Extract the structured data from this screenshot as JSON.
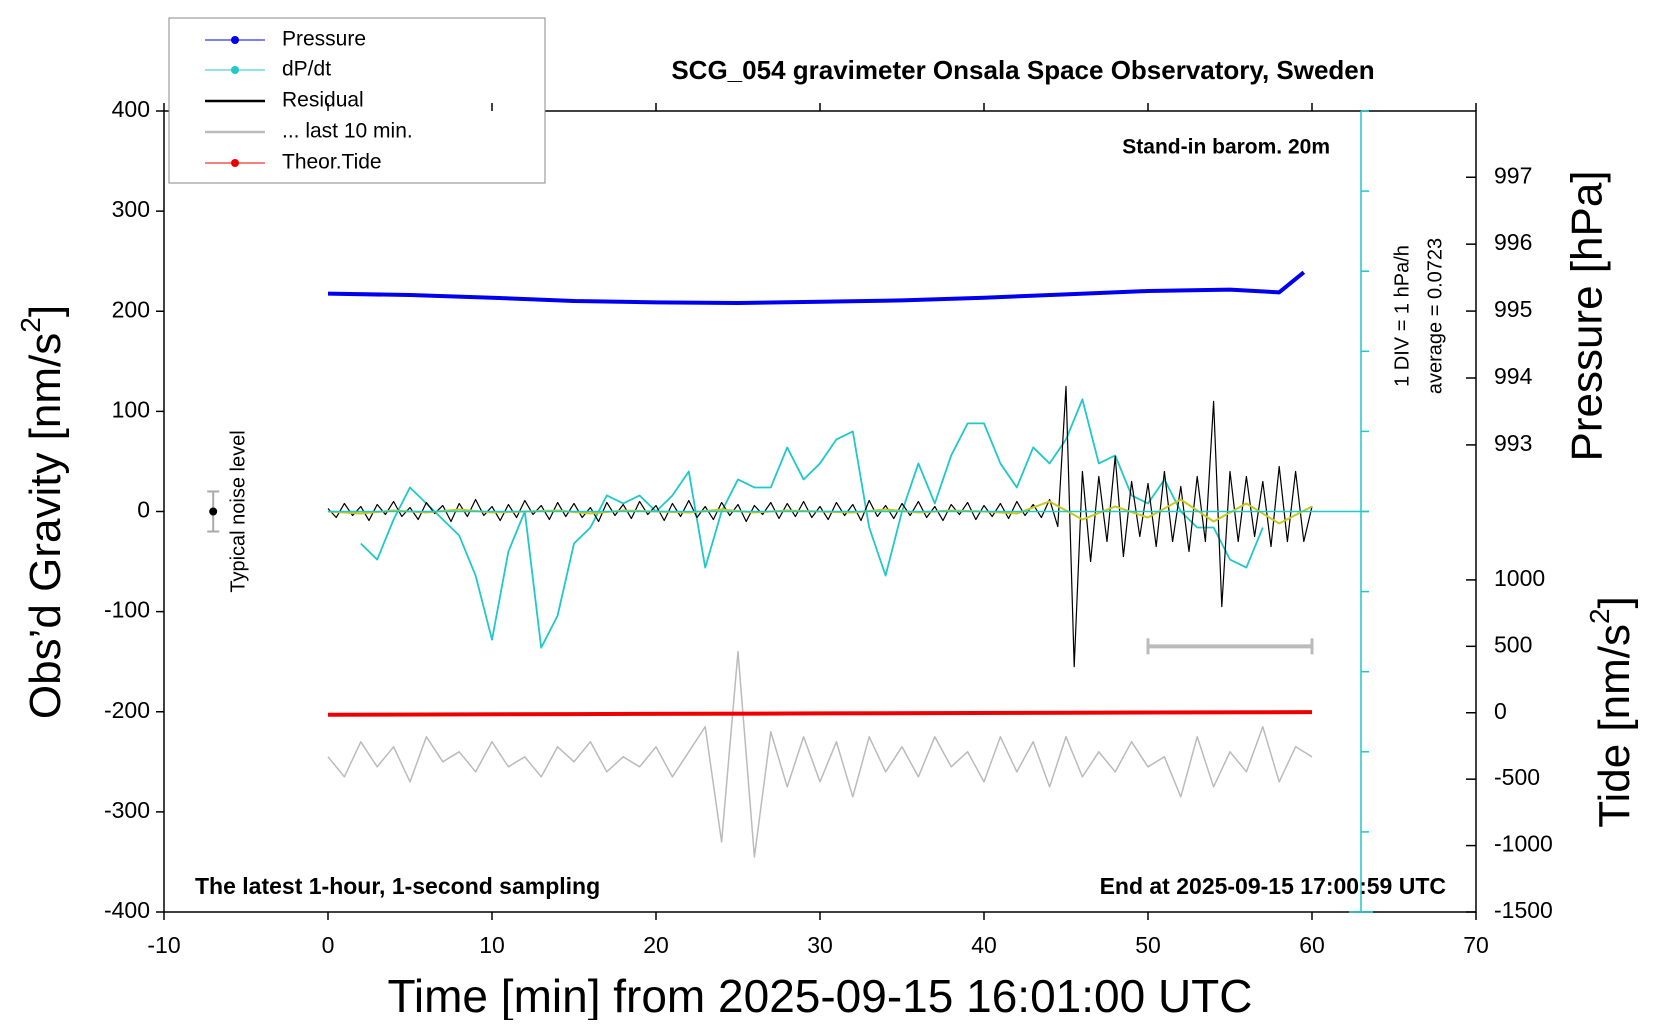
{
  "chart_data": {
    "type": "line",
    "title": "SCG_054 gravimeter Onsala Space Observatory, Sweden",
    "annotations": {
      "barometer": "Stand-in barom. 20m",
      "scale": "1 DIV = 1 hPa/h",
      "average": "average = 0.0723",
      "sampling": "The latest 1-hour, 1-second sampling",
      "end": "End at 2025-09-15 17:00:59 UTC"
    },
    "x_label": "Time [min] from 2025-09-15 16:01:00 UTC",
    "y_label": [
      "Obs’d Gravity [nm/s",
      "2",
      "]"
    ],
    "y2_label": "Pressure [hPa]",
    "y3_label": [
      "Tide [nm/s",
      "2",
      "]"
    ],
    "xlim": [
      -10,
      70
    ],
    "xticks": [
      -10,
      0,
      10,
      20,
      30,
      40,
      50,
      60,
      70
    ],
    "ylim": [
      -400,
      400
    ],
    "yticks": [
      -400,
      -300,
      -200,
      -100,
      0,
      100,
      200,
      300,
      400
    ],
    "y2lim": [
      986.02,
      997.99
    ],
    "y2ticks": [
      993,
      994,
      995,
      996,
      997
    ],
    "y3lim": [
      -1500,
      4530
    ],
    "y3ticks": [
      -1500,
      -1000,
      -500,
      0,
      500,
      1000
    ],
    "y4lim": [
      -5,
      5
    ],
    "y4ticks": [
      -5,
      -4,
      -3,
      -2,
      -1,
      0,
      1,
      2,
      3,
      4,
      5
    ],
    "series": [
      {
        "name": "Pressure",
        "color": "#0000ee",
        "axis": "y2",
        "marker": true,
        "line_width": 4,
        "x": [
          0,
          5,
          10,
          15,
          20,
          25,
          30,
          35,
          40,
          45,
          50,
          55,
          58,
          59.5
        ],
        "values": [
          995.26,
          995.24,
          995.2,
          995.15,
          995.13,
          995.12,
          995.14,
          995.16,
          995.2,
          995.25,
          995.3,
          995.32,
          995.28,
          995.58
        ]
      },
      {
        "name": "dP/dt",
        "color": "#20c8c8",
        "axis": "y4",
        "marker": true,
        "line_width": 1.8,
        "x": [
          2,
          3,
          4,
          5,
          6,
          7,
          8,
          9,
          10,
          11,
          12,
          13,
          14,
          15,
          16,
          17,
          18,
          19,
          20,
          21,
          22,
          23,
          24,
          25,
          26,
          27,
          28,
          29,
          30,
          31,
          32,
          33,
          34,
          35,
          36,
          37,
          38,
          39,
          40,
          41,
          42,
          43,
          44,
          45,
          46,
          47,
          48,
          49,
          50,
          51,
          52,
          53,
          54,
          55,
          56,
          57
        ],
        "values": [
          -0.4,
          -0.6,
          -0.1,
          0.3,
          0.1,
          -0.1,
          -0.3,
          -0.8,
          -1.6,
          -0.5,
          0.0,
          -1.7,
          -1.3,
          -0.4,
          -0.2,
          0.2,
          0.1,
          0.2,
          0.0,
          0.2,
          0.5,
          -0.7,
          0.0,
          0.4,
          0.3,
          0.3,
          0.8,
          0.4,
          0.6,
          0.9,
          1.0,
          -0.2,
          -0.8,
          0.0,
          0.6,
          0.1,
          0.7,
          1.1,
          1.1,
          0.6,
          0.3,
          0.8,
          0.6,
          0.9,
          1.4,
          0.6,
          0.7,
          0.2,
          0.1,
          0.4,
          0.0,
          -0.2,
          -0.2,
          -0.6,
          -0.7,
          -0.2
        ]
      },
      {
        "name": "Residual",
        "color": "#000000",
        "axis": "y",
        "marker": false,
        "line_width": 1.2,
        "x": [
          0,
          0.5,
          1,
          1.5,
          2,
          2.5,
          3,
          3.5,
          4,
          4.5,
          5,
          5.5,
          6,
          6.5,
          7,
          7.5,
          8,
          8.5,
          9,
          9.5,
          10,
          10.5,
          11,
          11.5,
          12,
          12.5,
          13,
          13.5,
          14,
          14.5,
          15,
          15.5,
          16,
          16.5,
          17,
          17.5,
          18,
          18.5,
          19,
          19.5,
          20,
          20.5,
          21,
          21.5,
          22,
          22.5,
          23,
          23.5,
          24,
          24.5,
          25,
          25.5,
          26,
          26.5,
          27,
          27.5,
          28,
          28.5,
          29,
          29.5,
          30,
          30.5,
          31,
          31.5,
          32,
          32.5,
          33,
          33.5,
          34,
          34.5,
          35,
          35.5,
          36,
          36.5,
          37,
          37.5,
          38,
          38.5,
          39,
          39.5,
          40,
          40.5,
          41,
          41.5,
          42,
          42.5,
          43,
          43.5,
          44,
          44.5,
          45,
          45.5,
          46,
          46.5,
          47,
          47.5,
          48,
          48.5,
          49,
          49.5,
          50,
          50.5,
          51,
          51.5,
          52,
          52.5,
          53,
          53.5,
          54,
          54.5,
          55,
          55.5,
          56,
          56.5,
          57,
          57.5,
          58,
          58.5,
          59,
          59.5,
          60
        ],
        "values": [
          3,
          -6,
          8,
          -4,
          5,
          -9,
          7,
          -3,
          10,
          -5,
          4,
          -8,
          9,
          -2,
          6,
          -10,
          8,
          -5,
          12,
          -4,
          5,
          -9,
          7,
          -6,
          11,
          -3,
          6,
          -8,
          9,
          -5,
          8,
          -6,
          4,
          -10,
          9,
          -4,
          7,
          -7,
          10,
          -3,
          6,
          -9,
          8,
          -5,
          11,
          -6,
          5,
          -8,
          9,
          -4,
          7,
          -10,
          6,
          -3,
          9,
          -7,
          8,
          -5,
          10,
          -6,
          5,
          -8,
          9,
          -4,
          7,
          -9,
          11,
          -5,
          6,
          -7,
          8,
          -4,
          10,
          -6,
          5,
          -9,
          7,
          -3,
          9,
          -8,
          6,
          -5,
          8,
          -7,
          10,
          -4,
          7,
          -6,
          12,
          -15,
          125,
          -155,
          40,
          -50,
          35,
          -30,
          55,
          -45,
          30,
          -25,
          28,
          -35,
          40,
          -30,
          25,
          -40,
          35,
          -30,
          110,
          -95,
          40,
          -30,
          35,
          -25,
          30,
          -35,
          45,
          -30,
          40,
          -30,
          5
        ]
      },
      {
        "name": "... last 10 min.",
        "color": "#bbbbbb",
        "axis": "y",
        "marker": false,
        "line_width": 1.5,
        "x": [
          0,
          1,
          2,
          3,
          4,
          5,
          6,
          7,
          8,
          9,
          10,
          11,
          12,
          13,
          14,
          15,
          16,
          17,
          18,
          19,
          20,
          21,
          22,
          23,
          24,
          25,
          26,
          27,
          28,
          29,
          30,
          31,
          32,
          33,
          34,
          35,
          36,
          37,
          38,
          39,
          40,
          41,
          42,
          43,
          44,
          45,
          46,
          47,
          48,
          49,
          50,
          51,
          52,
          53,
          54,
          55,
          56,
          57,
          58,
          59,
          60
        ],
        "values": [
          -245,
          -265,
          -230,
          -255,
          -235,
          -270,
          -225,
          -250,
          -240,
          -260,
          -230,
          -255,
          -245,
          -265,
          -235,
          -250,
          -230,
          -260,
          -245,
          -255,
          -235,
          -265,
          -240,
          -215,
          -330,
          -140,
          -345,
          -220,
          -275,
          -225,
          -270,
          -230,
          -285,
          -225,
          -260,
          -235,
          -265,
          -225,
          -255,
          -240,
          -270,
          -225,
          -260,
          -230,
          -275,
          -225,
          -265,
          -240,
          -260,
          -230,
          -255,
          -245,
          -285,
          -225,
          -275,
          -240,
          -260,
          -215,
          -270,
          -235,
          -245
        ]
      },
      {
        "name": "Theor.Tide",
        "color": "#ee0000",
        "axis": "y3",
        "marker": true,
        "line_width": 4,
        "x": [
          0,
          15,
          30,
          45,
          60
        ],
        "values": [
          -15,
          -10,
          -5,
          0,
          5
        ]
      },
      {
        "color": "#c8c820",
        "axis": "y",
        "line_width": 2,
        "x": [
          0,
          2,
          4,
          6,
          8,
          10,
          12,
          14,
          16,
          18,
          20,
          22,
          24,
          26,
          28,
          30,
          32,
          34,
          36,
          38,
          40,
          42,
          44,
          46,
          48,
          50,
          52,
          54,
          56,
          58,
          60
        ],
        "values": [
          0,
          -2,
          1,
          -1,
          2,
          -1,
          0,
          1,
          -2,
          1,
          0,
          -1,
          2,
          -1,
          1,
          0,
          -1,
          2,
          -1,
          1,
          0,
          -2,
          10,
          -8,
          5,
          -6,
          12,
          -10,
          8,
          -12,
          5
        ]
      }
    ],
    "noise_bar": {
      "x": -7,
      "value": 0,
      "error": 20,
      "label": "Typical noise level"
    },
    "range_bar": {
      "x": [
        50,
        60
      ],
      "value": 500,
      "axis": "y3"
    }
  }
}
